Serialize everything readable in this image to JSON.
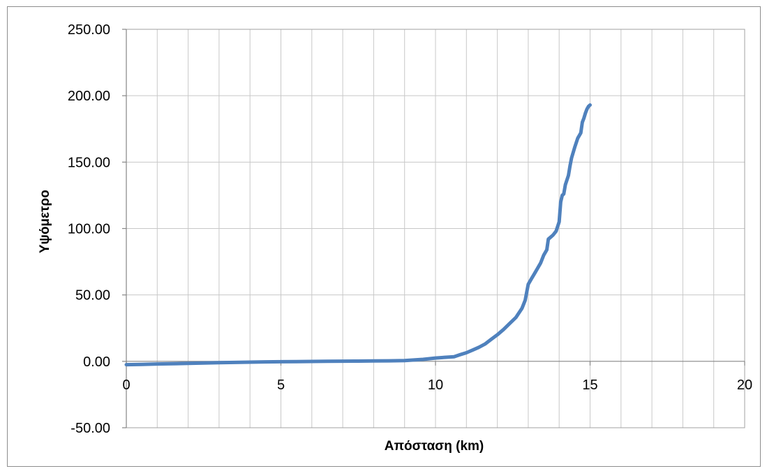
{
  "chart_data": {
    "type": "line",
    "title": "",
    "xlabel": "Απόσταση (km)",
    "ylabel": "Υψόμετρο",
    "xlim": [
      0,
      20
    ],
    "ylim": [
      -50,
      250
    ],
    "x_major_ticks": [
      0,
      5,
      10,
      15,
      20
    ],
    "x_tick_labels": [
      "0",
      "5",
      "10",
      "15",
      "20"
    ],
    "x_minor_step": 1,
    "y_ticks": [
      -50,
      0,
      50,
      100,
      150,
      200,
      250
    ],
    "y_tick_labels": [
      "-50.00",
      "0.00",
      "50.00",
      "100.00",
      "150.00",
      "200.00",
      "250.00"
    ],
    "grid": true,
    "legend": "none",
    "series": [
      {
        "color": "#4f81bd",
        "x": [
          0,
          0.5,
          1,
          1.5,
          2,
          2.5,
          3,
          3.5,
          4,
          4.5,
          5,
          5.5,
          6,
          6.5,
          7,
          7.5,
          8,
          8.5,
          9,
          9.3,
          9.6,
          10,
          10.3,
          10.6,
          10.8,
          11,
          11.2,
          11.4,
          11.6,
          11.8,
          12,
          12.2,
          12.4,
          12.6,
          12.8,
          12.9,
          13.0,
          13.1,
          13.2,
          13.3,
          13.4,
          13.5,
          13.6,
          13.65,
          13.7,
          13.8,
          13.9,
          14.0,
          14.05,
          14.1,
          14.15,
          14.2,
          14.3,
          14.35,
          14.4,
          14.5,
          14.6,
          14.7,
          14.75,
          14.8,
          14.85,
          14.9,
          14.95,
          15.0
        ],
        "y": [
          -2.5,
          -2.3,
          -2.0,
          -1.8,
          -1.5,
          -1.3,
          -1.0,
          -0.8,
          -0.6,
          -0.4,
          -0.3,
          -0.2,
          -0.1,
          0.0,
          0.1,
          0.2,
          0.3,
          0.4,
          0.6,
          1.0,
          1.5,
          2.5,
          3.0,
          3.5,
          5.0,
          6.5,
          8.5,
          10.5,
          13.0,
          16.5,
          20.0,
          24.0,
          28.5,
          33.0,
          40.0,
          46.0,
          58.0,
          62.0,
          66.0,
          70.0,
          74.0,
          80.0,
          84.0,
          92.0,
          93.0,
          95.0,
          98.0,
          105.0,
          120.0,
          125.0,
          126.0,
          133.0,
          140.0,
          147.0,
          153.0,
          161.0,
          168.0,
          172.0,
          180.0,
          183.0,
          187.0,
          190.0,
          192.0,
          193.0
        ]
      }
    ]
  }
}
